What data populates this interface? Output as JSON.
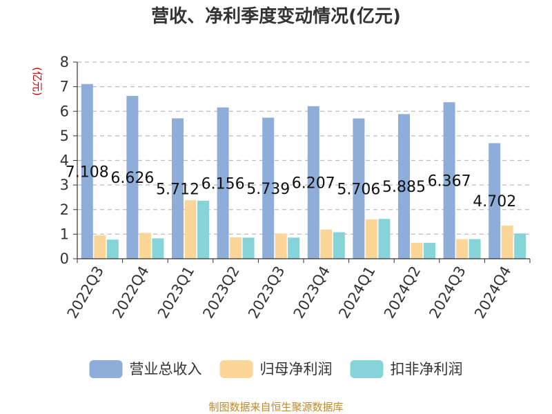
{
  "chart_data": {
    "type": "bar",
    "title": "营收、净利季度变动情况(亿元)",
    "ylabel": "(亿元)",
    "ylim": [
      0,
      8
    ],
    "yticks": [
      0,
      1,
      2,
      3,
      4,
      5,
      6,
      7,
      8
    ],
    "categories": [
      "2022Q3",
      "2022Q4",
      "2023Q1",
      "2023Q2",
      "2023Q3",
      "2023Q4",
      "2024Q1",
      "2024Q2",
      "2024Q3",
      "2024Q4"
    ],
    "series": [
      {
        "name": "营业总收入",
        "color": "#8eadd9",
        "values": [
          7.108,
          6.626,
          5.712,
          6.156,
          5.739,
          6.207,
          5.706,
          5.885,
          6.367,
          4.702
        ],
        "data_labels": [
          "7.108",
          "6.626",
          "5.712",
          "6.156",
          "5.739",
          "6.207",
          "5.706",
          "5.885",
          "6.367",
          "4.702"
        ]
      },
      {
        "name": "归母净利润",
        "color": "#fcd699",
        "values": [
          0.95,
          1.05,
          2.38,
          0.87,
          1.03,
          1.19,
          1.6,
          0.65,
          0.8,
          1.35
        ]
      },
      {
        "name": "扣非净利润",
        "color": "#86d4d8",
        "values": [
          0.78,
          0.83,
          2.36,
          0.86,
          0.86,
          1.08,
          1.62,
          0.65,
          0.8,
          1.03
        ]
      }
    ],
    "grid": true,
    "grid_style": "dashed",
    "legend_position": "bottom"
  },
  "footer": {
    "source": "制图数据来自恒生聚源数据库"
  }
}
